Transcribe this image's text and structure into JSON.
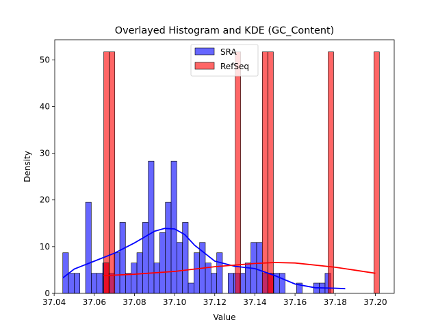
{
  "chart_data": {
    "type": "histogram",
    "title": "Overlayed Histogram and KDE (GC_Content)",
    "xlabel": "Value",
    "ylabel": "Density",
    "xlim": [
      37.0403,
      37.2094
    ],
    "ylim": [
      0,
      54.3
    ],
    "x_ticks": [
      37.04,
      37.06,
      37.08,
      37.1,
      37.12,
      37.14,
      37.16,
      37.18,
      37.2
    ],
    "x_tick_labels": [
      "37.04",
      "37.06",
      "37.08",
      "37.10",
      "37.12",
      "37.14",
      "37.16",
      "37.18",
      "37.20"
    ],
    "y_ticks": [
      0,
      10,
      20,
      30,
      40,
      50
    ],
    "y_tick_labels": [
      "0",
      "10",
      "20",
      "30",
      "40",
      "50"
    ],
    "grid": false,
    "legend": {
      "position": "top-center",
      "entries": [
        "SRA",
        "RefSeq"
      ]
    },
    "series": [
      {
        "name": "SRA",
        "color": "#0000ff",
        "bin_start": 37.0443,
        "bin_width": 0.00284,
        "densities": [
          8.7,
          4.3,
          4.3,
          0,
          19.5,
          4.3,
          4.3,
          6.5,
          4.3,
          8.7,
          15.2,
          4.3,
          6.5,
          8.7,
          15.2,
          28.3,
          6.5,
          13.0,
          19.5,
          28.3,
          10.9,
          15.2,
          2.2,
          8.7,
          10.9,
          6.5,
          4.3,
          8.7,
          0,
          4.3,
          4.3,
          4.3,
          6.5,
          10.9,
          10.9,
          4.3,
          4.3,
          4.3,
          4.3,
          0,
          0,
          2.2,
          0,
          0,
          2.2,
          2.2,
          4.3
        ],
        "kde": {
          "x": [
            37.0443,
            37.05,
            37.06,
            37.07,
            37.08,
            37.09,
            37.095,
            37.1,
            37.105,
            37.11,
            37.12,
            37.13,
            37.14,
            37.15,
            37.16,
            37.17,
            37.18,
            37.185
          ],
          "y": [
            3.3,
            5.2,
            6.9,
            8.6,
            10.8,
            13.3,
            13.9,
            13.8,
            12.6,
            10.3,
            6.9,
            5.8,
            5.3,
            3.8,
            2.0,
            1.2,
            1.1,
            1.0
          ]
        }
      },
      {
        "name": "RefSeq",
        "color": "#ff0000",
        "bin_start": 37.0647,
        "bin_width": 0.00272,
        "bins": [
          {
            "x": 37.0647,
            "density": 51.7
          },
          {
            "x": 37.0647,
            "density": 6.5
          },
          {
            "x": 37.0675,
            "density": 51.7
          },
          {
            "x": 37.1302,
            "density": 51.7
          },
          {
            "x": 37.1437,
            "density": 51.7
          },
          {
            "x": 37.1465,
            "density": 51.7
          },
          {
            "x": 37.1465,
            "density": 4.3
          },
          {
            "x": 37.1765,
            "density": 51.7
          },
          {
            "x": 37.1993,
            "density": 51.7
          }
        ],
        "kde": {
          "x": [
            37.0647,
            37.08,
            37.1,
            37.12,
            37.14,
            37.15,
            37.16,
            37.18,
            37.2
          ],
          "y": [
            3.8,
            4.1,
            4.7,
            5.7,
            6.4,
            6.6,
            6.5,
            5.6,
            4.3
          ]
        }
      }
    ]
  }
}
